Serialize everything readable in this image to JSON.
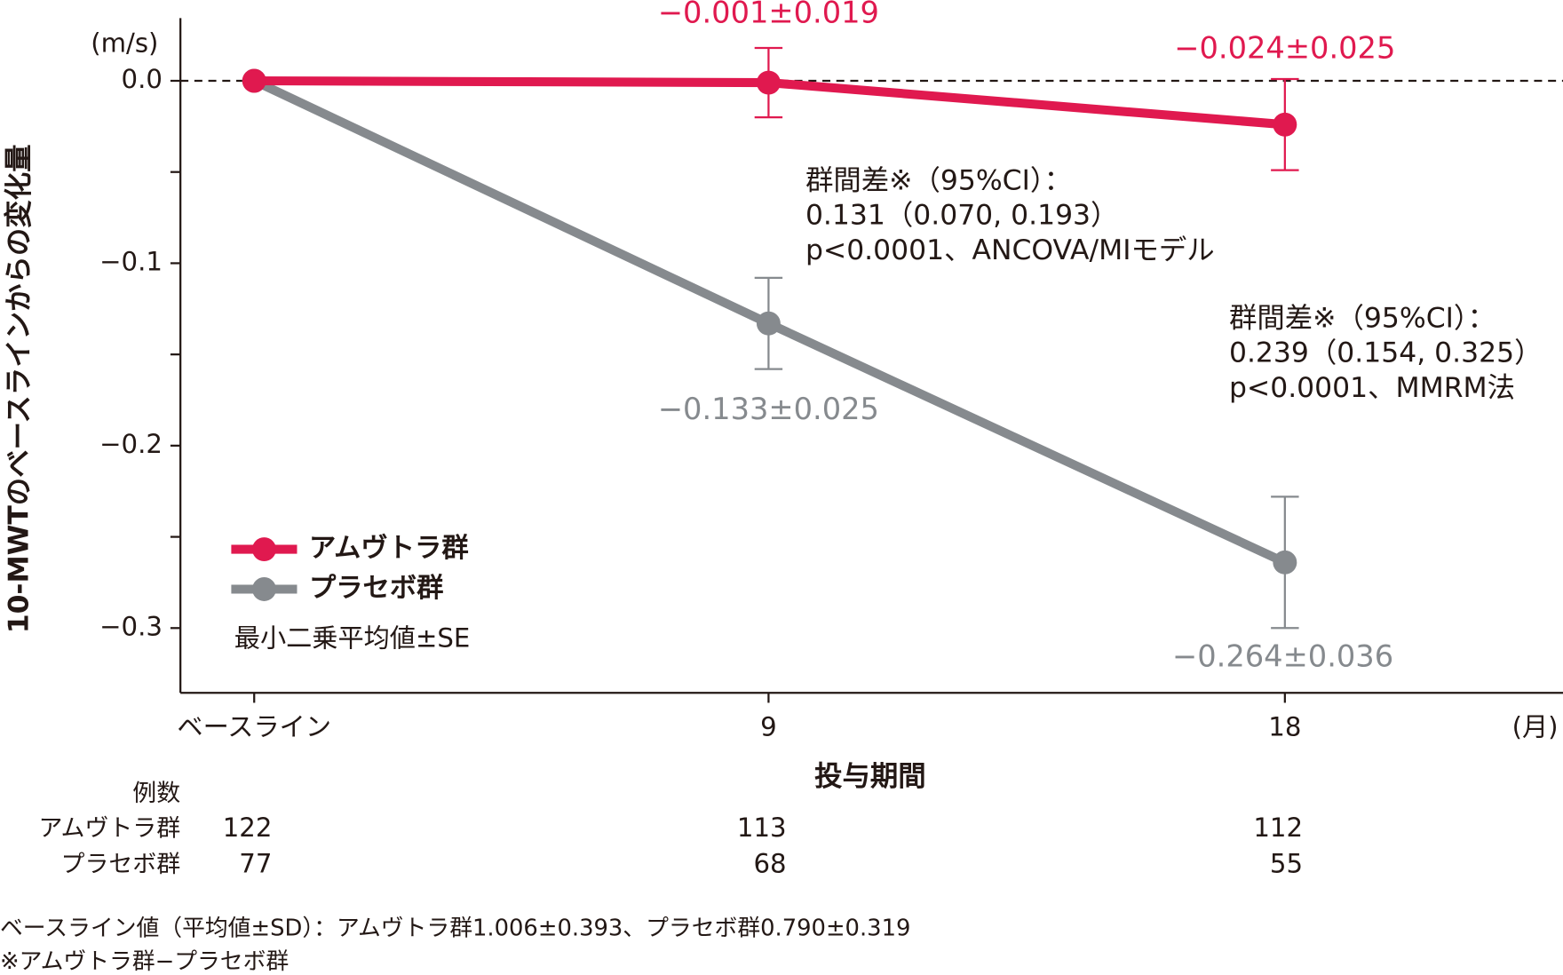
{
  "chart_data": {
    "type": "line",
    "y_label": "10-MWTのベースラインからの変化量",
    "y_unit": "(m/s)",
    "x_label": "投与期間",
    "x_unit": "(月)",
    "categories": [
      "ベースライン",
      "9",
      "18"
    ],
    "ylim": [
      0.0344,
      -0.3355
    ],
    "yticks": [
      {
        "value": 0,
        "label": "0.0"
      },
      {
        "value": -0.1,
        "label": "−0.1"
      },
      {
        "value": -0.2,
        "label": "−0.2"
      },
      {
        "value": -0.3,
        "label": "−0.3"
      }
    ],
    "minor_yticks": [
      -0.05,
      -0.15,
      -0.25
    ],
    "reference_line": 0,
    "series": [
      {
        "name": "アムヴトラ群",
        "color": "#e0194f",
        "values": [
          0,
          -0.001,
          -0.024
        ],
        "errors": [
          null,
          0.019,
          0.025
        ],
        "value_labels": [
          null,
          "−0.001±0.019",
          "−0.024±0.025"
        ]
      },
      {
        "name": "プラセボ群",
        "color": "#868a8e",
        "values": [
          0,
          -0.133,
          -0.264
        ],
        "errors": [
          null,
          0.025,
          0.036
        ],
        "value_labels": [
          null,
          "−0.133±0.025",
          "−0.264±0.036"
        ]
      }
    ],
    "legend_note": "最小二乗平均値±SE",
    "annotations": [
      {
        "lines": [
          "群間差※（95%CI）：",
          "0.131（0.070, 0.193）",
          "p<0.0001、ANCOVA/MIモデル"
        ]
      },
      {
        "lines": [
          "群間差※（95%CI）：",
          "0.239（0.154, 0.325）",
          "p<0.0001、MMRM法"
        ]
      }
    ],
    "n_table": {
      "title": "例数",
      "rows": [
        {
          "name": "アムヴトラ群",
          "values": [
            122,
            113,
            112
          ]
        },
        {
          "name": "プラセボ群",
          "values": [
            77,
            68,
            55
          ]
        }
      ]
    },
    "footnotes": [
      "ベースライン値（平均値±SD）：アムヴトラ群1.006±0.393、プラセボ群0.790±0.319",
      "※アムヴトラ群−プラセボ群"
    ]
  }
}
